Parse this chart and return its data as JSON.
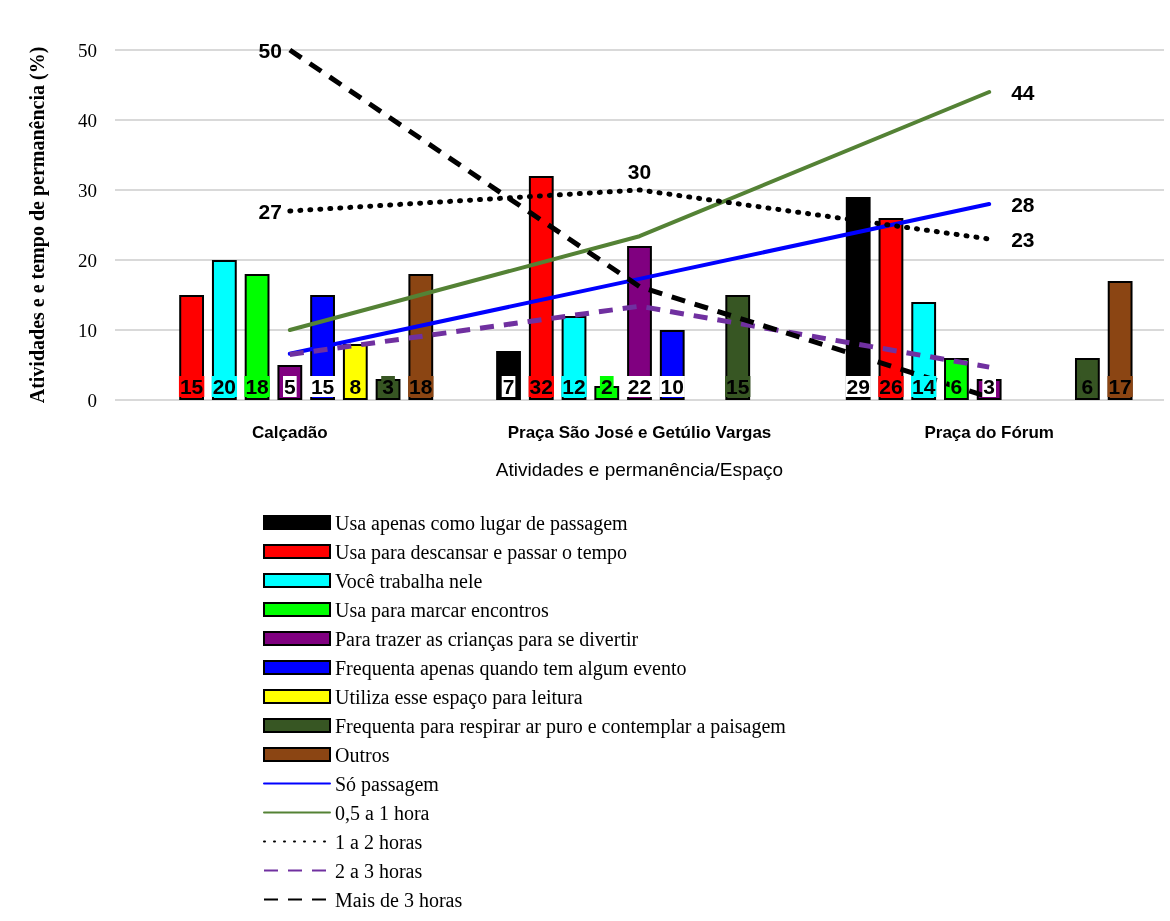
{
  "chart_data": {
    "type": "bar",
    "xlabel": "Atividades e permanência/Espaço",
    "ylabel": "Atividades e e tempo de permanência (%)",
    "categories": [
      "Calçadão",
      "Praça São José e Getúlio Vargas",
      "Praça do Fórum"
    ],
    "ylim": [
      0,
      50
    ],
    "yticks": [
      0,
      10,
      20,
      30,
      40,
      50
    ],
    "grid": "y",
    "legend": "bottom",
    "series": [
      {
        "name": "Usa apenas como lugar de passagem",
        "color": "#000000",
        "values": [
          null,
          7,
          29
        ],
        "value_labels": [
          null,
          "7",
          "29"
        ]
      },
      {
        "name": "Usa para descansar e passar o tempo",
        "color": "#ff0000",
        "values": [
          15,
          32,
          26
        ],
        "value_labels": [
          "15",
          "32",
          "26"
        ]
      },
      {
        "name": "Você trabalha nele",
        "color": "#00ffff",
        "values": [
          20,
          12,
          14
        ],
        "value_labels": [
          "20",
          "12",
          "14"
        ]
      },
      {
        "name": "Usa para marcar encontros",
        "color": "#00ff00",
        "values": [
          18,
          2,
          6
        ],
        "value_labels": [
          "18",
          "2",
          "6"
        ]
      },
      {
        "name": "Para trazer as crianças para se divertir",
        "color": "#800080",
        "values": [
          5,
          22,
          3
        ],
        "value_labels": [
          "5",
          "22",
          "3"
        ]
      },
      {
        "name": "Frequenta apenas quando tem algum evento",
        "color": "#0000ff",
        "values": [
          15,
          10,
          null
        ],
        "value_labels": [
          "15",
          "10",
          null
        ]
      },
      {
        "name": "Utiliza esse espaço para leitura",
        "color": "#ffff00",
        "values": [
          8,
          null,
          null
        ],
        "value_labels": [
          "8",
          null,
          null
        ]
      },
      {
        "name": "Frequenta para respirar ar puro e contemplar a paisagem",
        "color": "#375623",
        "values": [
          3,
          15,
          6
        ],
        "value_labels": [
          "3",
          "15",
          "6"
        ]
      },
      {
        "name": "Outros",
        "color": "#8b4513",
        "values": [
          18,
          null,
          17
        ],
        "value_labels": [
          "18",
          null,
          "17"
        ]
      },
      {
        "name": "Só passagem",
        "type": "line",
        "line_style": "solid",
        "color": "#0000ff",
        "values": [
          6.6,
          17.3,
          28
        ],
        "value_labels": [
          null,
          null,
          "28"
        ]
      },
      {
        "name": "0,5 a 1 hora",
        "type": "line",
        "line_style": "solid",
        "color": "#548235",
        "values": [
          10,
          23.4,
          44
        ],
        "value_labels": [
          null,
          null,
          "44"
        ]
      },
      {
        "name": "1 a 2 horas",
        "type": "line",
        "line_style": "dotted",
        "color": "#000000",
        "values": [
          27,
          30,
          23
        ],
        "value_labels": [
          "27",
          "30",
          "23"
        ]
      },
      {
        "name": "2 a 3 horas",
        "type": "line",
        "line_style": "dashed",
        "color": "#7030a0",
        "values": [
          6.5,
          13.4,
          4.7
        ],
        "value_labels": [
          null,
          null,
          null
        ]
      },
      {
        "name": "Mais de 3 horas",
        "type": "line",
        "line_style": "dashed",
        "color": "#000000",
        "values": [
          50,
          16.2,
          0.4
        ],
        "value_labels": [
          "50",
          null,
          null
        ]
      }
    ]
  }
}
